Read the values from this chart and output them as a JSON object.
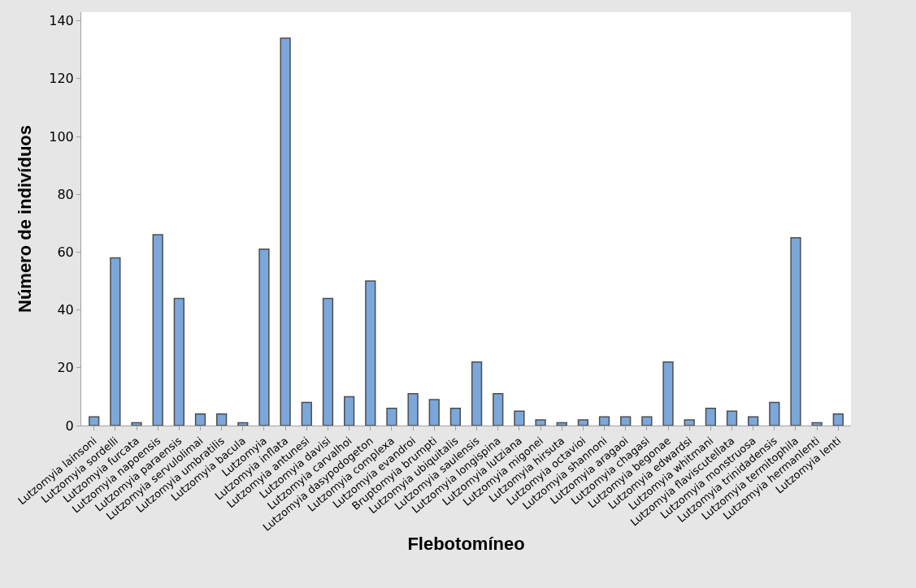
{
  "chart_data": {
    "type": "bar",
    "xlabel": "Flebotomíneo",
    "ylabel": "Número de indivíduos",
    "categories": [
      "Lutzomyia lainsoni",
      "Lutzomyia sordelli",
      "Lutzomyia furcata",
      "Lutzomyia napoensis",
      "Lutzomyia paraensis",
      "Lutzomyia servulolimai",
      "Lutzomyia umbratilis",
      "Lutzomyia bacula",
      "Lutzomyia",
      "Lutzomyia inflata",
      "Lutzomyia antunesi",
      "Lutzomyia davisi",
      "Lutzomyia carvalhoi",
      "Lutzomyia dasypodogeton",
      "Lutzomyia complexa",
      "Lutzomyia evandroi",
      "Bruptomyia brumpti",
      "Lutzomyia ubiquitalis",
      "Lutzomyia saulensis",
      "Lutzomyia longispina",
      "Lutzomyia lutziana",
      "Lutzomyia migonei",
      "Lutzomyia hirsuta",
      "Lutzomyia octavioi",
      "Lutzomyia shannoni",
      "Lutzomyia aragaoi",
      "Lutzomyia chagasi",
      "Lutzomyia begonae",
      "Lutzomyia edwardsi",
      "Lutzomyia whitmani",
      "Lutzomyia flaviscutellata",
      "Lutzomyia monstruosa",
      "Lutzomyia trinidadensis",
      "Lutzomyia termitophila",
      "Lutzomyia hermanlenti",
      "Lutzomyia lenti"
    ],
    "values": [
      3,
      58,
      1,
      66,
      44,
      4,
      4,
      1,
      61,
      134,
      8,
      44,
      10,
      50,
      6,
      11,
      9,
      6,
      22,
      11,
      5,
      2,
      1,
      2,
      3,
      3,
      3,
      22,
      2,
      6,
      5,
      3,
      8,
      65,
      1,
      4
    ],
    "color": "#7ba7db",
    "ylim": [
      0,
      143
    ],
    "yticks": [
      0,
      20,
      40,
      60,
      80,
      100,
      120,
      140
    ]
  }
}
